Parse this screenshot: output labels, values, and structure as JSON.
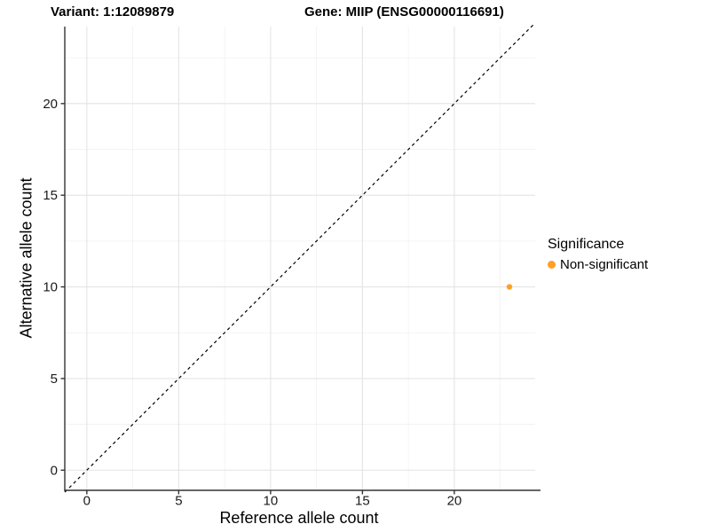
{
  "chart_data": {
    "type": "scatter",
    "title": {
      "variant": "Variant: 1:12089879",
      "gene": "Gene: MIIP (ENSG00000116691)"
    },
    "xlabel": "Reference allele count",
    "ylabel": "Alternative allele count",
    "x_ticks": [
      0,
      5,
      10,
      15,
      20
    ],
    "y_ticks": [
      0,
      5,
      10,
      15,
      20
    ],
    "x_minor_ticks": [
      2.5,
      7.5,
      12.5,
      17.5,
      22.5
    ],
    "y_minor_ticks": [
      2.5,
      7.5,
      12.5,
      17.5,
      22.5
    ],
    "xlim": [
      -1.2,
      24.4
    ],
    "ylim": [
      -1.1,
      24.2
    ],
    "grid": true,
    "series": [
      {
        "name": "Non-significant",
        "color": "#FFA024",
        "point_radius": 3.2,
        "points": [
          {
            "x": 23,
            "y": 10
          }
        ]
      }
    ],
    "reference_line": {
      "slope": 1,
      "intercept": 0,
      "style": "dashed",
      "color": "#000000"
    },
    "legend": {
      "title": "Significance",
      "position": "right",
      "items": [
        {
          "label": "Non-significant",
          "color": "#FFA024"
        }
      ]
    },
    "colors": {
      "background": "#FFFFFF",
      "grid_major": "#E4E4E4",
      "grid_minor": "#F1F1F1",
      "axis_line": "#333333",
      "tick_mark": "#333333",
      "tick_label": "#1A1A1A"
    }
  }
}
